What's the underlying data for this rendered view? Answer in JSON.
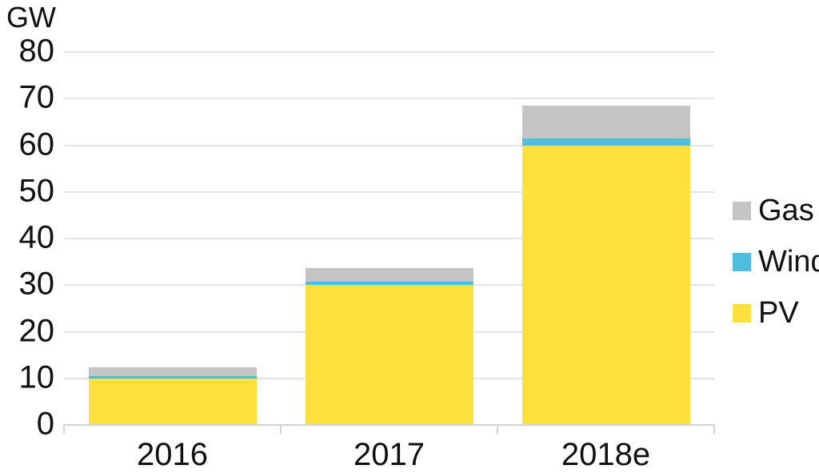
{
  "chart_data": {
    "type": "bar",
    "stacked": true,
    "ylabel": "GW",
    "categories": [
      "2016",
      "2017",
      "2018e"
    ],
    "series": [
      {
        "name": "PV",
        "color": "#ffe03e",
        "values": [
          10,
          30,
          60
        ]
      },
      {
        "name": "Wind",
        "color": "#4fbedd",
        "values": [
          0.4,
          0.7,
          1.5
        ]
      },
      {
        "name": "Gas",
        "color": "#c4c4c4",
        "values": [
          1.9,
          3.0,
          7.0
        ]
      }
    ],
    "totals": [
      12.3,
      33.7,
      68.5
    ],
    "ylim": [
      0,
      80
    ],
    "y_ticks": [
      0,
      10,
      20,
      30,
      40,
      50,
      60,
      70,
      80
    ],
    "grid": true,
    "legend": {
      "position": "right",
      "items_top_to_bottom": [
        "Gas",
        "Wind",
        "PV"
      ]
    },
    "colors": {
      "gridline": "#e4e4e4",
      "axis": "#d4d4d4",
      "text": "#111111",
      "background": "#ffffff"
    }
  }
}
